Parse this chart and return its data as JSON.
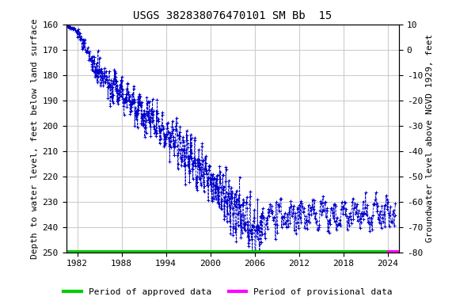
{
  "title": "USGS 382838076470101 SM Bb  15",
  "ylabel_left": "Depth to water level, feet below land surface",
  "ylabel_right": "Groundwater level above NGVD 1929, feet",
  "xlim": [
    1980.5,
    2025.5
  ],
  "ylim_left": [
    160,
    250
  ],
  "ylim_right": [
    10,
    -80
  ],
  "xticks": [
    1982,
    1988,
    1994,
    2000,
    2006,
    2012,
    2018,
    2024
  ],
  "yticks_left": [
    160,
    170,
    180,
    190,
    200,
    210,
    220,
    230,
    240,
    250
  ],
  "yticks_right": [
    10,
    0,
    -10,
    -20,
    -30,
    -40,
    -50,
    -60,
    -70,
    -80
  ],
  "line_color": "#0000cc",
  "approved_color": "#00cc00",
  "provisional_color": "#ff00ff",
  "background_color": "#ffffff",
  "grid_color": "#cccccc",
  "title_fontsize": 10,
  "axis_label_fontsize": 8,
  "tick_fontsize": 8,
  "legend_fontsize": 8,
  "approved_bar_start": 1980.5,
  "provisional_bar_start": 2023.8,
  "bar_y": 250,
  "seed": 42
}
